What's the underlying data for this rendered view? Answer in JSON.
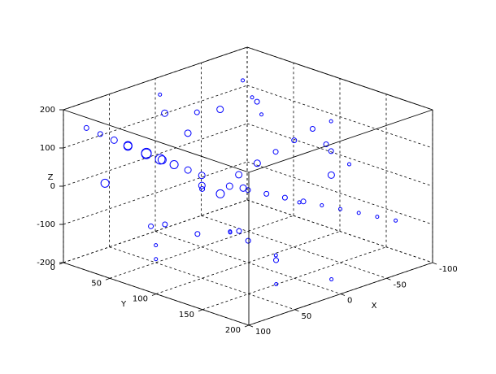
{
  "chart_data": {
    "type": "scatter3d",
    "xlabel": "X",
    "ylabel": "Y",
    "zlabel": "Z",
    "color": "#0000ff",
    "grid": true,
    "xlim": [
      -100,
      100
    ],
    "ylim": [
      0,
      200
    ],
    "zlim": [
      -200,
      200
    ],
    "xticks": [
      -100,
      -50,
      0,
      50,
      100
    ],
    "yticks": [
      0,
      50,
      100,
      150,
      200
    ],
    "zticks": [
      -200,
      -100,
      0,
      100,
      200
    ],
    "x": [
      40,
      35,
      30,
      45,
      38,
      25,
      20,
      50,
      55,
      30,
      10,
      0,
      -10,
      -20,
      -30,
      -40,
      -50,
      -60,
      -70,
      -80,
      60,
      70,
      80,
      15,
      5,
      -5,
      -15,
      -25,
      -35,
      -45,
      45,
      65,
      75,
      85,
      20,
      10,
      -55,
      -65,
      -75,
      -85,
      30,
      50,
      0,
      -20,
      -40,
      60,
      20,
      -10,
      -30,
      40,
      70,
      90,
      -90,
      25,
      55,
      35,
      15,
      -5,
      5,
      -25
    ],
    "y": [
      30,
      40,
      50,
      35,
      45,
      60,
      70,
      20,
      25,
      80,
      90,
      100,
      110,
      120,
      130,
      140,
      150,
      160,
      170,
      180,
      15,
      10,
      5,
      85,
      95,
      105,
      115,
      125,
      135,
      145,
      55,
      65,
      75,
      30,
      120,
      140,
      60,
      40,
      20,
      100,
      160,
      180,
      190,
      170,
      150,
      110,
      30,
      60,
      80,
      130,
      150,
      170,
      120,
      20,
      100,
      190,
      50,
      40,
      10,
      70
    ],
    "z": [
      60,
      50,
      40,
      70,
      55,
      30,
      20,
      80,
      90,
      10,
      0,
      -10,
      -20,
      -30,
      -40,
      -50,
      -60,
      -70,
      -80,
      -90,
      100,
      120,
      140,
      -20,
      30,
      60,
      90,
      120,
      150,
      170,
      -100,
      -130,
      -150,
      20,
      -110,
      -140,
      110,
      130,
      150,
      40,
      -120,
      -150,
      -170,
      70,
      100,
      50,
      150,
      160,
      180,
      -60,
      -20,
      10,
      0,
      -150,
      -80,
      60,
      110,
      140,
      170,
      -50
    ],
    "sizes": [
      6,
      6,
      5,
      6,
      5,
      4,
      4,
      5,
      5,
      4,
      4,
      3,
      3,
      3,
      3,
      2,
      2,
      2,
      2,
      2,
      4,
      3,
      3,
      5,
      4,
      4,
      3,
      3,
      3,
      2,
      3,
      2,
      2,
      5,
      3,
      2,
      2,
      2,
      2,
      3,
      3,
      2,
      2,
      4,
      3,
      3,
      4,
      4,
      3,
      3,
      2,
      2,
      2,
      3,
      3,
      2,
      4,
      3,
      2,
      4
    ]
  }
}
